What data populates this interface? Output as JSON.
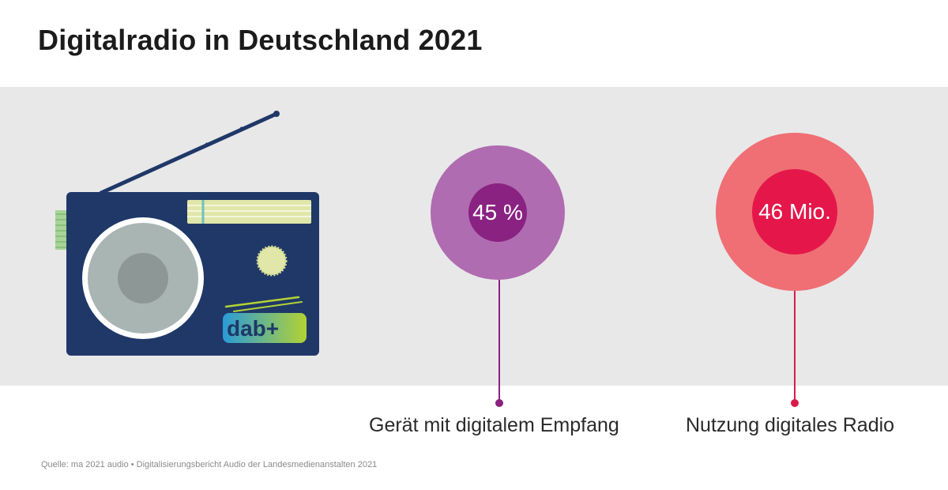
{
  "title": "Digitalradio in Deutschland 2021",
  "stats": [
    {
      "value": "45 %",
      "label": "Gerät mit digitalem Empfang",
      "outer_color": "#b06cb0",
      "inner_color": "#8a2282",
      "line_color": "#8a2282"
    },
    {
      "value": "46 Mio.",
      "label": "Nutzung digitales Radio",
      "outer_color": "#ef6f74",
      "inner_color": "#e5174a",
      "line_color": "#d81c4a"
    }
  ],
  "radio_logo": "dab+",
  "source": "Quelle: ma 2021 audio • Digitalisierungsbericht Audio der Landesmedienanstalten 2021",
  "colors": {
    "band": "#e8e8e9",
    "radio_body": "#1f3868",
    "dial": "#a9b5b3",
    "tuner_strip": "#e0e7a8"
  }
}
